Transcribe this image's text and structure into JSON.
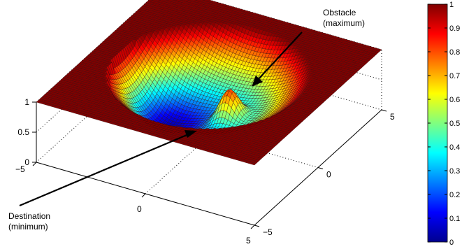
{
  "chart_data": {
    "type": "surface",
    "title": "",
    "xlabel": "",
    "ylabel": "",
    "zlabel": "",
    "xlim": [
      -5,
      5
    ],
    "ylim": [
      -5,
      5
    ],
    "zlim": [
      0,
      1
    ],
    "x_ticks": [
      "-5",
      "0",
      "5"
    ],
    "y_ticks": [
      "-5",
      "0",
      "5"
    ],
    "z_ticks": [
      "0",
      "0.5",
      "1"
    ],
    "colormap": "jet",
    "colorbar": {
      "range": [
        0,
        1
      ],
      "ticks": [
        "0",
        "0.1",
        "0.2",
        "0.3",
        "0.4",
        "0.5",
        "0.6",
        "0.7",
        "0.8",
        "0.9",
        "1"
      ]
    },
    "surface_description_points": [
      {
        "label": "Obstacle (maximum)",
        "x": 0.8,
        "y": 0.2,
        "z": 0.72
      },
      {
        "label": "Destination (minimum)",
        "x": -2.0,
        "y": -0.5,
        "z": 0.0
      }
    ],
    "annotations": [
      {
        "lines": [
          "Obstacle",
          "(maximum)"
        ],
        "target": "obstacle-peak"
      },
      {
        "lines": [
          "Destination",
          "(minimum)"
        ],
        "target": "destination-minimum"
      }
    ],
    "grid": true,
    "box": true
  },
  "colors": {
    "background": "#ffffff",
    "edge": "#3a0a0a",
    "flat_region": "#7f0000",
    "axis": "#000000"
  }
}
